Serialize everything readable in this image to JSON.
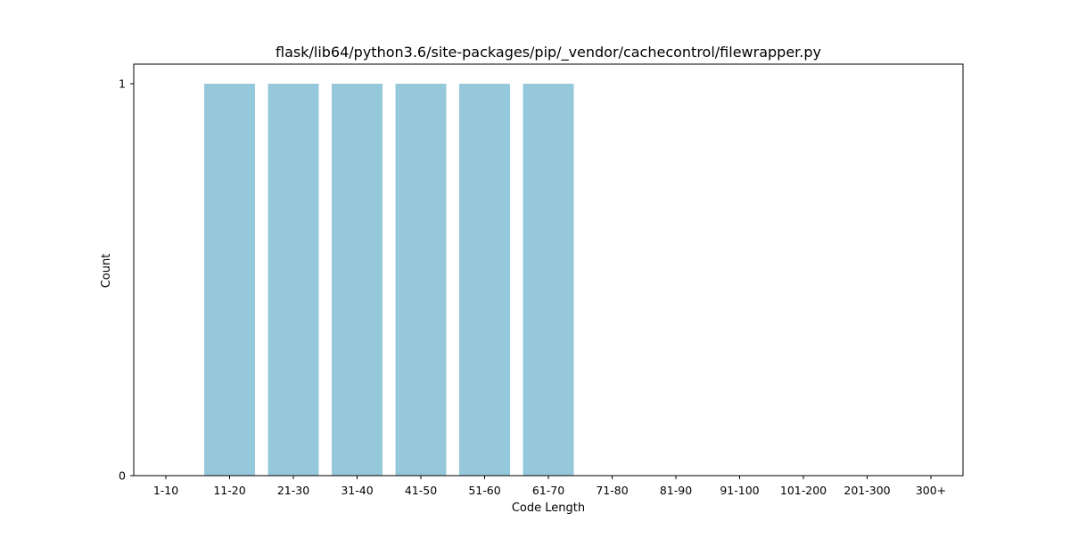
{
  "chart_data": {
    "type": "bar",
    "title": "flask/lib64/python3.6/site-packages/pip/_vendor/cachecontrol/filewrapper.py",
    "xlabel": "Code Length",
    "ylabel": "Count",
    "categories": [
      "1-10",
      "11-20",
      "21-30",
      "31-40",
      "41-50",
      "51-60",
      "61-70",
      "71-80",
      "81-90",
      "91-100",
      "101-200",
      "201-300",
      "300+"
    ],
    "values": [
      0,
      1,
      1,
      1,
      1,
      1,
      1,
      0,
      0,
      0,
      0,
      0,
      0
    ],
    "ylim": [
      0,
      1
    ],
    "yticks": [
      0,
      1
    ],
    "bar_color": "#96c8dc",
    "grid": false,
    "legend": "none"
  }
}
